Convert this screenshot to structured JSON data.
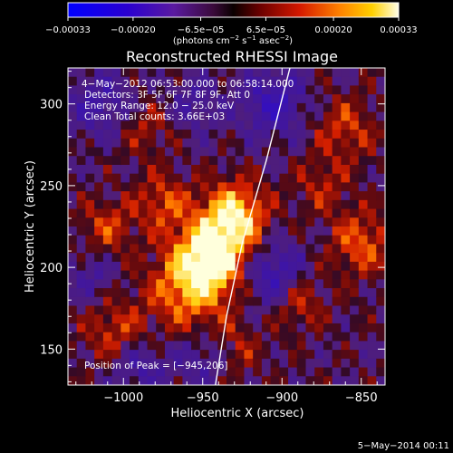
{
  "chart_data": {
    "type": "heatmap",
    "title": "Reconstructed RHESSI Image",
    "xlabel": "Heliocentric X (arcsec)",
    "ylabel": "Heliocentric Y (arcsec)",
    "xlim": [
      -1035,
      -835
    ],
    "ylim": [
      128,
      322
    ],
    "xticks": [
      -1000,
      -950,
      -900,
      -850
    ],
    "xtick_labels": [
      "−1000",
      "−950",
      "−900",
      "−850"
    ],
    "yticks": [
      150,
      200,
      250,
      300
    ],
    "ytick_labels": [
      "150",
      "200",
      "250",
      "300"
    ],
    "colorbar": {
      "range": [
        -0.00033,
        0.00033
      ],
      "tick_labels": [
        "−0.00033",
        "−0.00020",
        "−6.5e−05",
        "6.5e−05",
        "0.00020",
        "0.00033"
      ],
      "tick_values": [
        -0.00033,
        -0.0002,
        -6.5e-05,
        6.5e-05,
        0.0002,
        0.00033
      ],
      "unit_label_parts": [
        "(photons cm",
        "−2",
        " s",
        "−1",
        " asec",
        "−2",
        ")"
      ]
    },
    "annotations": {
      "time_range": "4−May−2012 06:53:00.000 to 06:58:14.000",
      "detectors": "Detectors: 3F 5F 6F 7F 8F 9F, Att 0",
      "energy_range": "Energy Range: 12.0 − 25.0 keV",
      "clean_counts": "Clean     Total counts: 3.66E+03",
      "peak": "Position of Peak = [−945,206]"
    },
    "peak_position": [
      -945,
      206
    ],
    "limb_curve": [
      [
        -942,
        128
      ],
      [
        -935,
        170
      ],
      [
        -925,
        215
      ],
      [
        -910,
        265
      ],
      [
        -895,
        322
      ]
    ],
    "grid": false,
    "legend": "none"
  },
  "footer": {
    "date": "5−May−2014 00:11"
  },
  "colors": {
    "background": "#000000",
    "axes": "#ffffff",
    "limb": "#ffffff"
  }
}
